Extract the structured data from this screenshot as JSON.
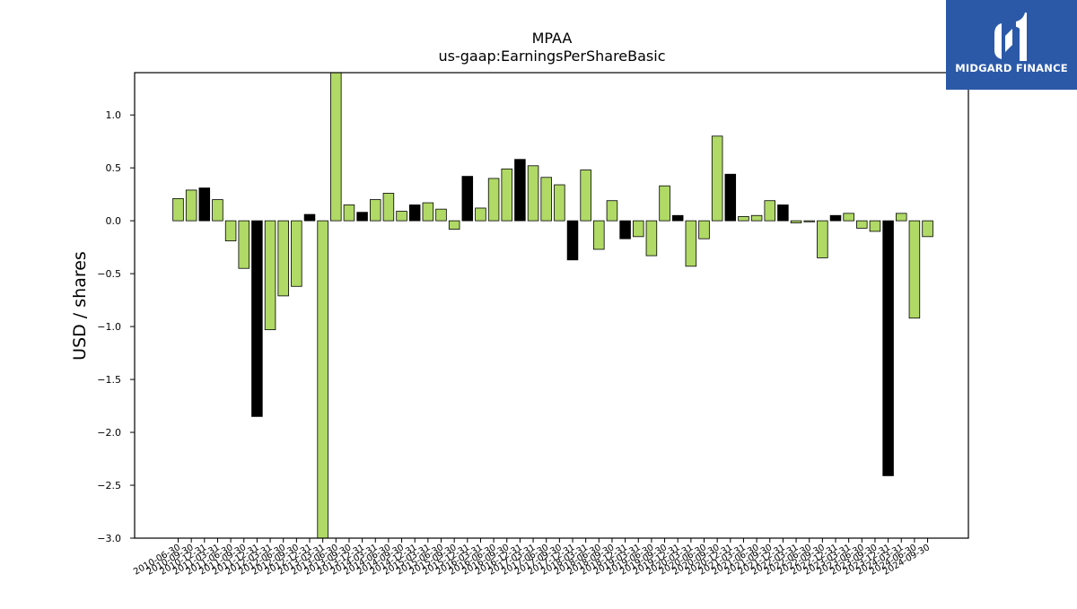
{
  "chart_data": {
    "type": "bar",
    "title": "MPAA",
    "subtitle": "us-gaap:EarningsPerShareBasic",
    "ylabel": "USD / shares",
    "xlabel": "",
    "ylim": [
      -3.0,
      1.4
    ],
    "yticks": [
      1.0,
      0.5,
      0.0,
      -0.5,
      -1.0,
      -1.5,
      -2.0,
      -2.5,
      -3.0
    ],
    "ytick_labels": [
      "1.0",
      "0.5",
      "0.0",
      "−0.5",
      "−1.0",
      "−1.5",
      "−2.0",
      "−2.5",
      "−3.0"
    ],
    "colors": {
      "quarter": "#b0d966",
      "fiscal_year": "#000000",
      "edge": "#000000"
    },
    "categories": [
      "2010-06-30",
      "2010-09-30",
      "2010-12-31",
      "2011-03-31",
      "2011-06-30",
      "2011-09-30",
      "2011-12-31",
      "2012-03-31",
      "2012-06-30",
      "2012-09-30",
      "2012-12-31",
      "2013-03-31",
      "2013-06-30",
      "2013-09-30",
      "2013-12-31",
      "2014-03-31",
      "2014-06-30",
      "2014-09-30",
      "2014-12-31",
      "2015-03-31",
      "2015-06-30",
      "2015-09-30",
      "2015-12-31",
      "2016-03-31",
      "2016-06-30",
      "2016-09-30",
      "2016-12-31",
      "2017-03-31",
      "2017-06-30",
      "2017-09-30",
      "2017-12-31",
      "2018-03-31",
      "2018-06-30",
      "2018-09-30",
      "2018-12-31",
      "2019-03-31",
      "2019-06-30",
      "2019-09-30",
      "2019-12-31",
      "2020-03-31",
      "2020-06-30",
      "2020-09-30",
      "2020-12-31",
      "2021-03-31",
      "2021-06-30",
      "2021-09-30",
      "2021-12-31",
      "2022-03-31",
      "2022-06-30",
      "2022-09-30",
      "2022-12-31",
      "2023-03-31",
      "2023-06-30",
      "2023-09-30",
      "2023-12-31",
      "2024-03-31",
      "2024-06-30",
      "2024-09-30"
    ],
    "values": [
      0.21,
      0.29,
      0.31,
      0.2,
      -0.19,
      -0.45,
      -1.85,
      -1.03,
      -0.71,
      -0.62,
      0.06,
      -3.05,
      1.43,
      0.15,
      0.08,
      0.2,
      0.26,
      0.09,
      0.15,
      0.17,
      0.11,
      -0.08,
      0.42,
      0.12,
      0.4,
      0.49,
      0.58,
      0.52,
      0.41,
      0.34,
      -0.37,
      0.48,
      -0.27,
      0.19,
      -0.17,
      -0.15,
      -0.33,
      0.33,
      0.05,
      -0.43,
      -0.17,
      0.8,
      0.44,
      0.04,
      0.05,
      0.19,
      0.15,
      -0.02,
      -0.01,
      -0.35,
      0.05,
      0.07,
      -0.07,
      -0.1,
      -2.41,
      0.07,
      -0.92,
      -0.15
    ],
    "annual": [
      false,
      false,
      true,
      false,
      false,
      false,
      true,
      false,
      false,
      false,
      true,
      false,
      false,
      false,
      true,
      false,
      false,
      false,
      true,
      false,
      false,
      false,
      true,
      false,
      false,
      false,
      true,
      false,
      false,
      false,
      true,
      false,
      false,
      false,
      true,
      false,
      false,
      false,
      true,
      false,
      false,
      false,
      true,
      false,
      false,
      false,
      true,
      false,
      false,
      false,
      true,
      false,
      false,
      false,
      true,
      false,
      false,
      false
    ],
    "grid": false,
    "legend": "none"
  },
  "logo": {
    "text": "MIDGARD FINANCE",
    "icon": "midgard-finance-logo-icon"
  }
}
